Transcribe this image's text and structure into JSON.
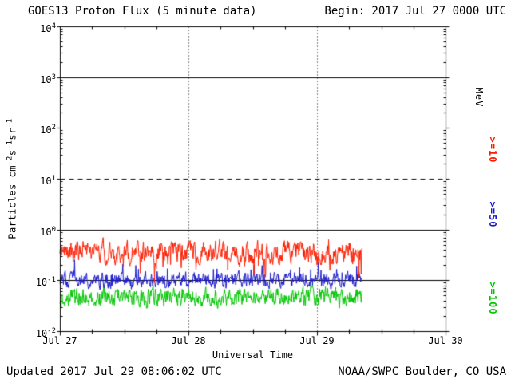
{
  "header": {
    "title": "GOES13 Proton Flux (5 minute data)",
    "begin_label": "Begin: 2017 Jul 27 0000 UTC"
  },
  "footer": {
    "updated": "Updated 2017 Jul 29 08:06:02 UTC",
    "source": "NOAA/SWPC Boulder, CO USA"
  },
  "axes": {
    "x_title": "Universal Time",
    "x_ticks": [
      "Jul 27",
      "Jul 28",
      "Jul 29",
      "Jul 30"
    ],
    "y_ticks": [
      {
        "base": "10",
        "exp": "4"
      },
      {
        "base": "10",
        "exp": "3"
      },
      {
        "base": "10",
        "exp": "2"
      },
      {
        "base": "10",
        "exp": "1"
      },
      {
        "base": "10",
        "exp": "0"
      },
      {
        "base": "10",
        "exp": "-1"
      },
      {
        "base": "10",
        "exp": "-2"
      }
    ],
    "y_title_parts": [
      {
        "text": "Particles cm"
      },
      {
        "sup": "-2"
      },
      {
        "text": "s"
      },
      {
        "sup": "-1"
      },
      {
        "text": "sr"
      },
      {
        "sup": "-1"
      }
    ],
    "right_unit_label": {
      "text": "MeV",
      "color": "#000000"
    },
    "right_labels": [
      {
        "text": ">=10",
        "color": "#fb1d00"
      },
      {
        "text": ">=50",
        "color": "#1a1acc"
      },
      {
        "text": ">=100",
        "color": "#00c400"
      }
    ]
  },
  "chart_data": {
    "type": "line",
    "title": "GOES13 Proton Flux (5 minute data)",
    "xlabel": "Universal Time",
    "ylabel": "Particles cm^-2 s^-1 sr^-1",
    "x_start": "2017 Jul 27 0000 UTC",
    "x_end": "2017 Jul 30 0000 UTC",
    "x_span_days": 3,
    "x_tick_days": [
      "Jul 27",
      "Jul 28",
      "Jul 29",
      "Jul 30"
    ],
    "cadence_minutes": 5,
    "y_scale": "log10",
    "y_range_log10": [
      -2,
      4
    ],
    "y_units": "Particles cm^-2 s^-1 sr^-1",
    "data_end_day_fraction": 0.785,
    "gridlines_h": [
      {
        "log10": 3,
        "style": "solid"
      },
      {
        "log10": 1,
        "style": "dashed"
      },
      {
        "log10": 0,
        "style": "solid"
      },
      {
        "log10": -1,
        "style": "solid"
      }
    ],
    "gridlines_v_days": [
      1,
      2
    ],
    "series": [
      {
        "name": ">=100 MeV",
        "color": "#00c400",
        "approx_mean_flux": 0.05,
        "log10_mean": -1.33,
        "log10_range": [
          -1.55,
          -1.02
        ],
        "persist": 0.45,
        "jitter": 0.15,
        "spike_prob": 0.03,
        "spike_mag": -0.2,
        "seed": 424242
      },
      {
        "name": ">=50 MeV",
        "color": "#1a1acc",
        "approx_mean_flux": 0.1,
        "log10_mean": -1.0,
        "log10_range": [
          -1.22,
          -0.58
        ],
        "persist": 0.45,
        "jitter": 0.12,
        "spike_prob": 0.05,
        "spike_mag": 0.3,
        "seed": 87341
      },
      {
        "name": ">=10 MeV",
        "color": "#fb1d00",
        "approx_mean_flux": 0.35,
        "log10_mean": -0.46,
        "log10_range": [
          -1.05,
          -0.06
        ],
        "persist": 0.55,
        "jitter": 0.17,
        "spike_prob": 0.04,
        "spike_mag": -0.5,
        "seed": 20177
      }
    ]
  }
}
